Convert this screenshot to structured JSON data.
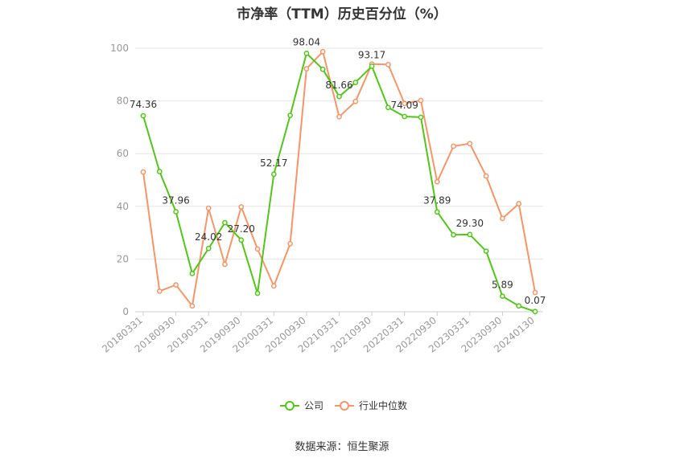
{
  "title": "市净率（TTM）历史百分位（%）",
  "source": "数据来源：恒生聚源",
  "chart_data": {
    "type": "line",
    "title": "市净率（TTM）历史百分位（%）",
    "xlabel": "",
    "ylabel": "",
    "ylim": [
      0,
      100
    ],
    "yticks": [
      0,
      20,
      40,
      60,
      80,
      100
    ],
    "grid": true,
    "legend_position": "bottom",
    "x_tick_labels": [
      "20180331",
      "20180930",
      "20190331",
      "20190930",
      "20200331",
      "20200930",
      "20210331",
      "20210930",
      "20220331",
      "20220930",
      "20230331",
      "20230930",
      "20240130"
    ],
    "x": [
      "20180331",
      "20180630",
      "20180930",
      "20181231",
      "20190331",
      "20190630",
      "20190930",
      "20191231",
      "20200331",
      "20200630",
      "20200930",
      "20201231",
      "20210331",
      "20210630",
      "20210930",
      "20211231",
      "20220331",
      "20220630",
      "20220930",
      "20221231",
      "20230331",
      "20230630",
      "20230930",
      "20231231",
      "20240130"
    ],
    "series": [
      {
        "name": "公司",
        "color": "#52c41a",
        "values": [
          74.36,
          53.2,
          37.96,
          14.5,
          24.02,
          33.8,
          27.2,
          7.0,
          52.17,
          74.5,
          98.04,
          92.0,
          81.66,
          87.0,
          93.17,
          77.5,
          74.09,
          73.8,
          37.89,
          29.2,
          29.3,
          23.0,
          5.89,
          2.2,
          0.07
        ],
        "labels": {
          "0": "74.36",
          "2": "37.96",
          "4": "24.02",
          "6": "27.20",
          "8": "52.17",
          "10": "98.04",
          "12": "81.66",
          "14": "93.17",
          "16": "74.09",
          "18": "37.89",
          "20": "29.30",
          "22": "5.89",
          "24": "0.07"
        }
      },
      {
        "name": "行业中位数",
        "color": "#f4956a",
        "values": [
          53.0,
          7.8,
          10.2,
          2.2,
          39.3,
          18.0,
          39.8,
          23.8,
          9.8,
          25.8,
          92.2,
          98.7,
          74.0,
          79.8,
          94.0,
          93.8,
          79.0,
          80.2,
          49.3,
          62.8,
          63.8,
          51.5,
          35.4,
          41.0,
          7.3
        ]
      }
    ]
  }
}
